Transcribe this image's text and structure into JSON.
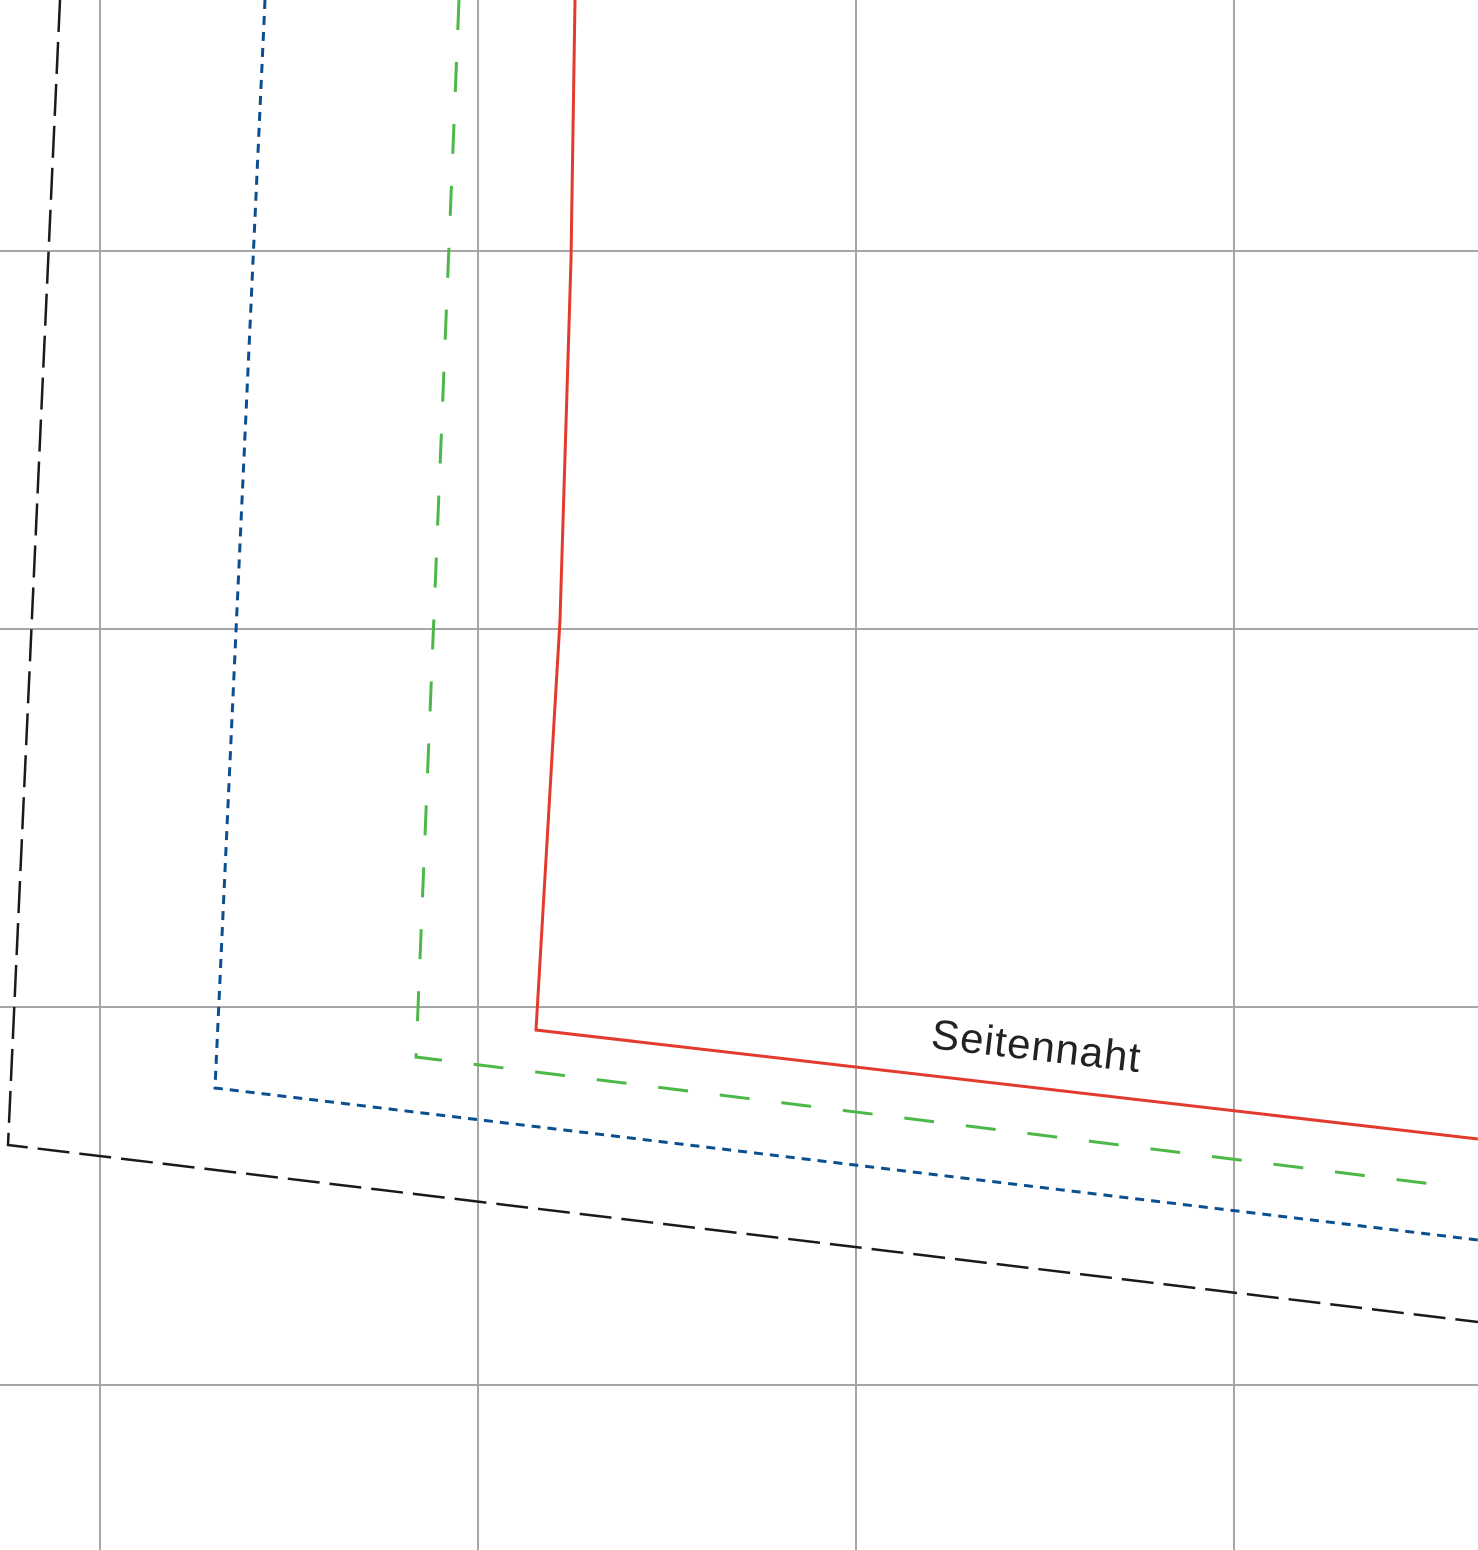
{
  "pattern": {
    "seam_label": "Seitennaht",
    "outlines": [
      {
        "id": "outline-black",
        "color": "#1a1a1a",
        "style": "long-dash"
      },
      {
        "id": "outline-blue",
        "color": "#0a4f8f",
        "style": "short-dash"
      },
      {
        "id": "outline-green",
        "color": "#4cb848",
        "style": "dash"
      },
      {
        "id": "outline-red",
        "color": "#e23a2c",
        "style": "solid"
      }
    ],
    "grid_color": "#a6a6a6"
  }
}
